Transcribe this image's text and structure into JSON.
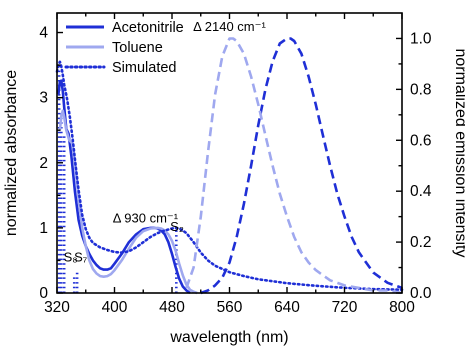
{
  "chart_data": {
    "type": "line",
    "xlabel": "wavelength (nm)",
    "ylabel": "normalized absorbance",
    "y2label": "normalized emission intensity",
    "xlim": [
      320,
      800
    ],
    "ylim": [
      0,
      4.3
    ],
    "y2lim": [
      0,
      1.1
    ],
    "xticks": [
      "320",
      "400",
      "480",
      "560",
      "640",
      "720",
      "800"
    ],
    "yticks": [
      "0",
      "1",
      "2",
      "3",
      "4"
    ],
    "y2ticks": [
      "0.0",
      "0.2",
      "0.4",
      "0.6",
      "0.8",
      "1.0"
    ],
    "grid": false,
    "legend_position": "top-left",
    "colors": {
      "acetonitrile": "#1f2fd6",
      "toluene": "#9fa8ef",
      "simulated": "#1f2fd6",
      "axis": "#000000"
    },
    "legend": [
      {
        "label": "Acetonitrile",
        "series": "acetonitrile",
        "style": "solid"
      },
      {
        "label": "Toluene",
        "series": "toluene",
        "style": "solid"
      },
      {
        "label": "Simulated",
        "series": "simulated",
        "style": "dotted"
      }
    ],
    "annotations": [
      {
        "text": "Δ 2140 cm⁻¹",
        "x": 560,
        "y": 4.02
      },
      {
        "text": "Δ 930 cm⁻¹",
        "x": 443,
        "y": 1.08
      },
      {
        "text": "S₂",
        "x": 487,
        "y": 0.95
      },
      {
        "text": "S₈",
        "x": 339,
        "y": 0.48
      },
      {
        "text": "S₇",
        "x": 353,
        "y": 0.48
      }
    ],
    "series": [
      {
        "key": "acetonitrile",
        "kind": "absorbance",
        "axis": "left",
        "style": "solid",
        "x": [
          322,
          324,
          326,
          328,
          330,
          333,
          336,
          340,
          345,
          350,
          355,
          360,
          365,
          370,
          375,
          380,
          385,
          390,
          395,
          400,
          410,
          420,
          430,
          440,
          450,
          455,
          460,
          465,
          470,
          475,
          480,
          485,
          490,
          495,
          500,
          505
        ],
        "y": [
          3.05,
          3.25,
          3.26,
          3.1,
          2.85,
          2.52,
          2.45,
          2.1,
          1.55,
          1.12,
          0.88,
          0.72,
          0.6,
          0.5,
          0.43,
          0.38,
          0.36,
          0.36,
          0.38,
          0.45,
          0.6,
          0.78,
          0.9,
          0.98,
          1.0,
          1.0,
          0.99,
          0.96,
          0.9,
          0.78,
          0.6,
          0.4,
          0.22,
          0.1,
          0.04,
          0.0
        ]
      },
      {
        "key": "toluene",
        "kind": "absorbance",
        "axis": "left",
        "style": "solid",
        "x": [
          324,
          326,
          328,
          330,
          333,
          337,
          341,
          345,
          350,
          355,
          360,
          365,
          370,
          375,
          380,
          385,
          390,
          395,
          400,
          410,
          420,
          430,
          440,
          450,
          460,
          465,
          470,
          475,
          480,
          485,
          490,
          495,
          500,
          505,
          510,
          515
        ],
        "y": [
          2.5,
          2.72,
          2.8,
          2.7,
          2.5,
          2.35,
          2.3,
          2.0,
          1.45,
          1.0,
          0.72,
          0.5,
          0.37,
          0.3,
          0.26,
          0.25,
          0.26,
          0.29,
          0.35,
          0.5,
          0.68,
          0.85,
          0.95,
          0.99,
          1.0,
          0.99,
          0.96,
          0.9,
          0.8,
          0.65,
          0.45,
          0.27,
          0.13,
          0.05,
          0.02,
          0.0
        ]
      },
      {
        "key": "simulated",
        "kind": "absorbance",
        "axis": "left",
        "style": "dotted",
        "x": [
          320,
          322,
          324,
          326,
          328,
          330,
          334,
          338,
          342,
          346,
          350,
          355,
          360,
          365,
          370,
          380,
          390,
          400,
          410,
          420,
          430,
          440,
          450,
          460,
          470,
          480,
          485,
          490,
          495,
          500,
          510,
          520,
          530,
          540,
          560,
          580,
          600,
          640,
          680,
          720,
          760,
          800
        ],
        "y": [
          3.4,
          3.5,
          3.55,
          3.48,
          3.35,
          3.2,
          2.98,
          2.7,
          2.35,
          1.95,
          1.58,
          1.2,
          0.98,
          0.85,
          0.77,
          0.7,
          0.66,
          0.63,
          0.62,
          0.64,
          0.7,
          0.78,
          0.86,
          0.92,
          0.96,
          0.99,
          1.0,
          0.99,
          0.96,
          0.92,
          0.78,
          0.62,
          0.5,
          0.42,
          0.32,
          0.26,
          0.21,
          0.15,
          0.11,
          0.08,
          0.06,
          0.05
        ]
      },
      {
        "key": "acetonitrile",
        "kind": "emission",
        "axis": "right",
        "style": "dashed",
        "x": [
          520,
          530,
          540,
          550,
          560,
          570,
          580,
          590,
          600,
          610,
          620,
          630,
          640,
          645,
          650,
          660,
          670,
          680,
          690,
          700,
          710,
          720,
          730,
          740,
          750,
          760,
          770,
          780,
          790,
          800
        ],
        "y": [
          0.0,
          0.01,
          0.03,
          0.06,
          0.12,
          0.22,
          0.35,
          0.5,
          0.66,
          0.8,
          0.91,
          0.98,
          1.0,
          1.0,
          0.99,
          0.94,
          0.85,
          0.74,
          0.62,
          0.5,
          0.39,
          0.3,
          0.22,
          0.16,
          0.12,
          0.08,
          0.06,
          0.04,
          0.03,
          0.02
        ]
      },
      {
        "key": "toluene",
        "kind": "emission",
        "axis": "right",
        "style": "dashed",
        "x": [
          500,
          510,
          520,
          530,
          540,
          550,
          560,
          565,
          570,
          580,
          590,
          600,
          610,
          620,
          630,
          640,
          650,
          660,
          670,
          680,
          690,
          700,
          720,
          740,
          760,
          780,
          800
        ],
        "y": [
          0.02,
          0.1,
          0.3,
          0.55,
          0.78,
          0.93,
          1.0,
          1.0,
          0.99,
          0.94,
          0.85,
          0.74,
          0.62,
          0.5,
          0.39,
          0.3,
          0.22,
          0.16,
          0.12,
          0.09,
          0.07,
          0.05,
          0.03,
          0.02,
          0.01,
          0.01,
          0.0
        ]
      }
    ],
    "sticks": {
      "series": "simulated",
      "axis": "left",
      "style": "dotted",
      "x": [
        323,
        326,
        330,
        344,
        348,
        486
      ],
      "y": [
        3.5,
        2.75,
        2.45,
        0.28,
        0.35,
        1.0
      ]
    }
  }
}
